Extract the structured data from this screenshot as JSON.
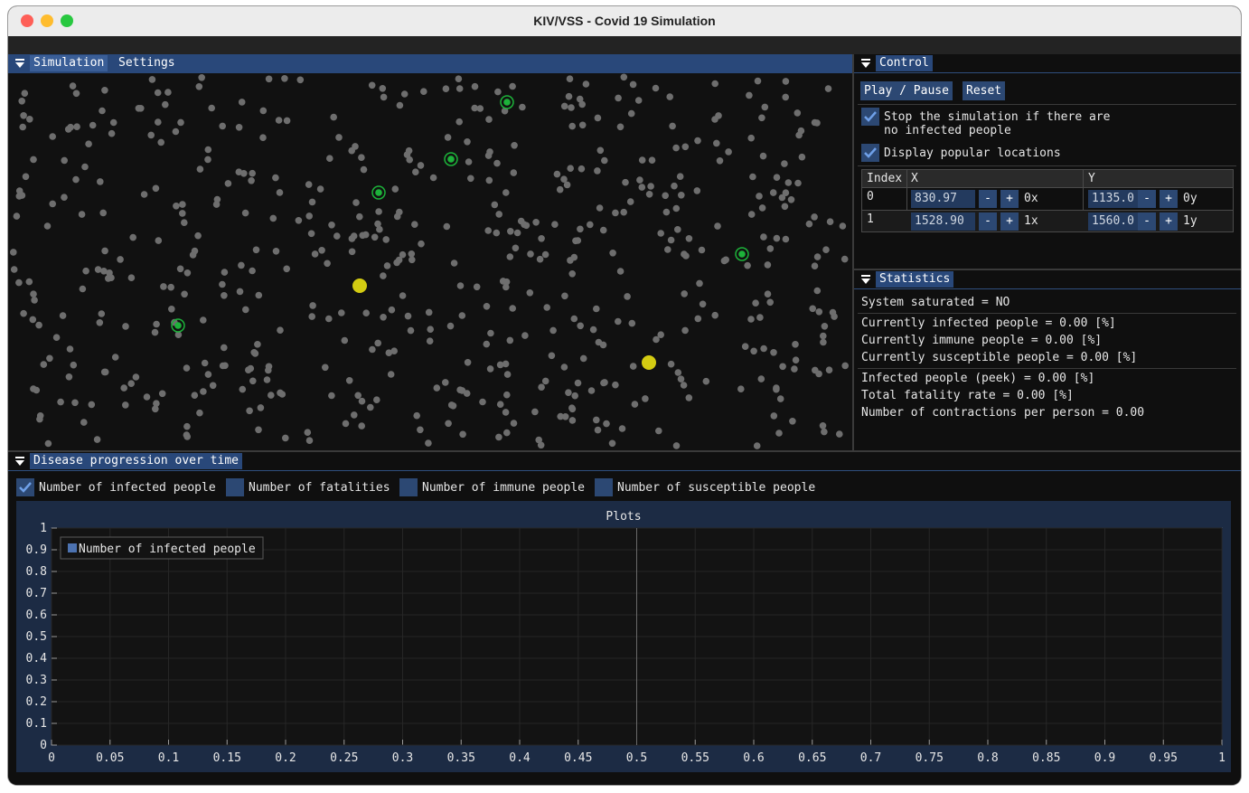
{
  "window": {
    "title": "KIV/VSS - Covid 19 Simulation"
  },
  "sim_panel": {
    "tabs": [
      "Simulation",
      "Settings"
    ]
  },
  "control": {
    "title": "Control",
    "play_pause": "Play / Pause",
    "reset": "Reset",
    "stop_check_label": "Stop the simulation if there are\nno infected people",
    "stop_checked": true,
    "display_check_label": "Display popular locations",
    "display_checked": true,
    "table": {
      "headers": [
        "Index",
        "X",
        "Y"
      ],
      "rows": [
        {
          "index": "0",
          "x": "830.97",
          "x_tag": "0x",
          "y": "1135.0",
          "y_tag": "0y",
          "minus": "-",
          "plus": "+"
        },
        {
          "index": "1",
          "x": "1528.90",
          "x_tag": "1x",
          "y": "1560.0",
          "y_tag": "1y",
          "minus": "-",
          "plus": "+"
        }
      ]
    }
  },
  "statistics": {
    "title": "Statistics",
    "saturated": "System saturated = NO",
    "infected": "Currently infected people = 0.00 [%]",
    "immune": "Currently immune people = 0.00 [%]",
    "susceptible": "Currently susceptible people = 0.00 [%]",
    "peak": "Infected people (peek) = 0.00 [%]",
    "fatality": "Total fatality rate = 0.00 [%]",
    "contractions": "Number of contractions per person = 0.00"
  },
  "disease": {
    "title": "Disease progression over time",
    "checks": [
      {
        "label": "Number of infected people",
        "checked": true
      },
      {
        "label": "Number of fatalities",
        "checked": false
      },
      {
        "label": "Number of immune people",
        "checked": false
      },
      {
        "label": "Number of susceptible people",
        "checked": false
      }
    ]
  },
  "colors": {
    "accent": "#29487a",
    "person": "#6e6e6e",
    "infected": "#1db33a",
    "location": "#d4cc12",
    "series": "#4c72b0"
  },
  "chart_data": {
    "type": "line",
    "title": "Plots",
    "xlabel": "",
    "ylabel": "",
    "xlim": [
      0,
      1
    ],
    "ylim": [
      0,
      1
    ],
    "x_ticks": [
      "0",
      "0.05",
      "0.1",
      "0.15",
      "0.2",
      "0.25",
      "0.3",
      "0.35",
      "0.4",
      "0.45",
      "0.5",
      "0.55",
      "0.6",
      "0.65",
      "0.7",
      "0.75",
      "0.8",
      "0.85",
      "0.9",
      "0.95",
      "1"
    ],
    "y_ticks": [
      "0",
      "0.1",
      "0.2",
      "0.3",
      "0.4",
      "0.5",
      "0.6",
      "0.7",
      "0.8",
      "0.9",
      "1"
    ],
    "legend_position": "top-left",
    "grid": true,
    "series": [
      {
        "name": "Number of infected people",
        "x": [],
        "y": []
      }
    ]
  }
}
